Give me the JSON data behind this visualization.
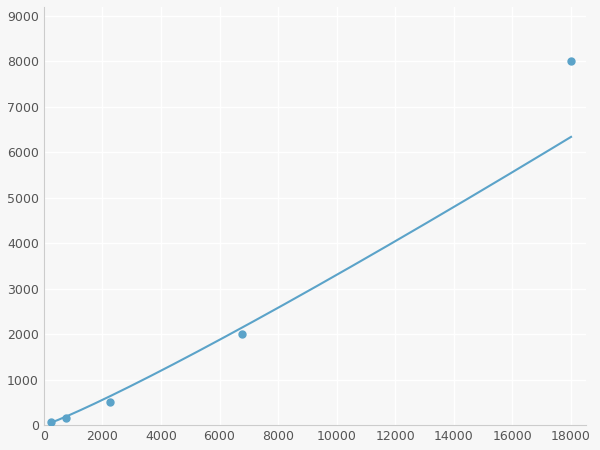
{
  "x": [
    250,
    750,
    2250,
    6750,
    18000
  ],
  "y": [
    75,
    150,
    500,
    2000,
    8000
  ],
  "line_color": "#5ba3c9",
  "marker_color": "#5ba3c9",
  "marker_size": 5,
  "line_width": 1.5,
  "xlim": [
    0,
    18500
  ],
  "ylim": [
    0,
    9200
  ],
  "xticks": [
    0,
    2000,
    4000,
    6000,
    8000,
    10000,
    12000,
    14000,
    16000,
    18000
  ],
  "yticks": [
    0,
    1000,
    2000,
    3000,
    4000,
    5000,
    6000,
    7000,
    8000,
    9000
  ],
  "grid": true,
  "background_color": "#f7f7f7",
  "grid_color": "#ffffff",
  "spine_color": "#cccccc"
}
